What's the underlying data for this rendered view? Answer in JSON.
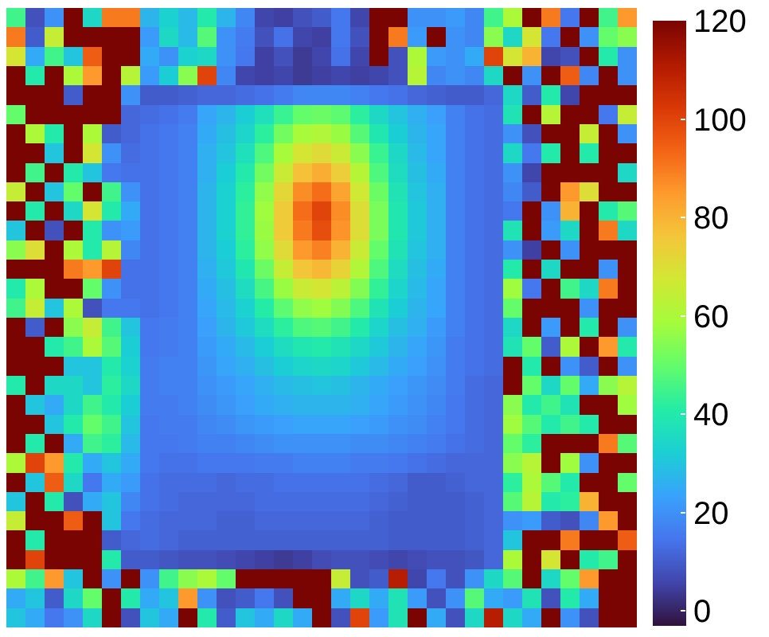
{
  "chart_data": {
    "type": "heatmap",
    "categories": [
      null,
      null,
      null,
      null,
      null,
      null,
      null,
      null,
      null,
      null,
      null,
      null,
      null,
      null,
      null,
      null,
      null,
      null,
      null,
      null,
      null,
      null,
      null,
      null,
      null,
      null,
      null,
      null,
      null,
      null,
      null,
      null,
      null
    ],
    "y_categories": [
      null,
      null,
      null,
      null,
      null,
      null,
      null,
      null,
      null,
      null,
      null,
      null,
      null,
      null,
      null,
      null,
      null,
      null,
      null,
      null,
      null,
      null,
      null,
      null,
      null,
      null,
      null,
      null,
      null,
      null,
      null,
      null
    ],
    "cells": [
      [
        45,
        8,
        20,
        120,
        35,
        90,
        90,
        27,
        33,
        28,
        40,
        27,
        18,
        6,
        5,
        8,
        10,
        15,
        6,
        120,
        120,
        20,
        20,
        22,
        18,
        45,
        60,
        120,
        90,
        15,
        120,
        45,
        85
      ],
      [
        90,
        10,
        65,
        120,
        120,
        120,
        120,
        22,
        35,
        28,
        48,
        20,
        16,
        8,
        14,
        6,
        5,
        15,
        8,
        120,
        90,
        22,
        120,
        20,
        18,
        55,
        35,
        68,
        15,
        120,
        20,
        50,
        55
      ],
      [
        68,
        25,
        45,
        30,
        95,
        120,
        120,
        25,
        20,
        33,
        35,
        20,
        15,
        5,
        8,
        4,
        6,
        14,
        6,
        120,
        8,
        60,
        22,
        20,
        25,
        100,
        68,
        80,
        6,
        8,
        120,
        40,
        20
      ],
      [
        120,
        40,
        120,
        60,
        85,
        120,
        62,
        22,
        32,
        55,
        100,
        18,
        6,
        5,
        6,
        4,
        5,
        6,
        5,
        6,
        8,
        62,
        18,
        20,
        18,
        35,
        120,
        20,
        120,
        95,
        18,
        120,
        20
      ],
      [
        120,
        120,
        120,
        10,
        120,
        120,
        20,
        10,
        10,
        11,
        12,
        12,
        13,
        14,
        16,
        18,
        18,
        18,
        17,
        15,
        14,
        12,
        11,
        10,
        10,
        12,
        35,
        10,
        40,
        6,
        120,
        120,
        120
      ],
      [
        50,
        120,
        120,
        120,
        120,
        120,
        12,
        13,
        14,
        16,
        24,
        27,
        32,
        37,
        44,
        50,
        51,
        49,
        42,
        35,
        30,
        26,
        23,
        17,
        14,
        13,
        38,
        120,
        62,
        120,
        120,
        15,
        65
      ],
      [
        120,
        60,
        40,
        120,
        60,
        10,
        12,
        14,
        15,
        17,
        25,
        29,
        34,
        42,
        52,
        59,
        61,
        57,
        48,
        39,
        32,
        27,
        24,
        17,
        14,
        13,
        20,
        8,
        120,
        120,
        65,
        120,
        20
      ],
      [
        120,
        120,
        30,
        120,
        68,
        20,
        13,
        14,
        15,
        17,
        26,
        30,
        37,
        47,
        59,
        68,
        71,
        66,
        55,
        44,
        35,
        28,
        24,
        17,
        14,
        13,
        35,
        15,
        40,
        120,
        40,
        120,
        120
      ],
      [
        120,
        45,
        120,
        40,
        30,
        15,
        14,
        14,
        15,
        17,
        26,
        32,
        40,
        52,
        66,
        77,
        81,
        74,
        62,
        47,
        36,
        29,
        25,
        17,
        14,
        13,
        20,
        6,
        120,
        120,
        120,
        120,
        35
      ],
      [
        65,
        120,
        30,
        50,
        120,
        45,
        20,
        14,
        15,
        17,
        27,
        33,
        42,
        56,
        72,
        87,
        92,
        83,
        67,
        51,
        38,
        30,
        26,
        17,
        14,
        13,
        18,
        10,
        120,
        85,
        70,
        120,
        120
      ],
      [
        120,
        40,
        120,
        35,
        68,
        40,
        25,
        14,
        15,
        17,
        27,
        33,
        43,
        58,
        75,
        92,
        100,
        87,
        70,
        53,
        39,
        31,
        26,
        17,
        14,
        13,
        15,
        120,
        20,
        80,
        120,
        40,
        48
      ],
      [
        30,
        120,
        8,
        120,
        40,
        20,
        22,
        14,
        15,
        17,
        27,
        33,
        43,
        57,
        75,
        90,
        98,
        86,
        70,
        53,
        39,
        31,
        26,
        17,
        14,
        13,
        38,
        120,
        22,
        35,
        120,
        90,
        35
      ],
      [
        55,
        70,
        120,
        60,
        40,
        62,
        18,
        14,
        15,
        17,
        27,
        32,
        42,
        56,
        71,
        85,
        89,
        80,
        66,
        50,
        38,
        30,
        26,
        17,
        14,
        13,
        20,
        5,
        120,
        20,
        120,
        120,
        120
      ],
      [
        120,
        120,
        120,
        90,
        85,
        100,
        14,
        14,
        15,
        17,
        26,
        31,
        39,
        51,
        65,
        76,
        79,
        73,
        61,
        47,
        36,
        29,
        25,
        17,
        14,
        13,
        40,
        120,
        35,
        120,
        120,
        20,
        120
      ],
      [
        40,
        60,
        120,
        120,
        50,
        20,
        14,
        14,
        15,
        17,
        25,
        29,
        36,
        46,
        57,
        66,
        68,
        63,
        54,
        43,
        34,
        28,
        24,
        17,
        14,
        13,
        58,
        15,
        120,
        45,
        35,
        90,
        120
      ],
      [
        45,
        65,
        30,
        60,
        8,
        15,
        15,
        14,
        15,
        17,
        24,
        28,
        33,
        41,
        49,
        56,
        58,
        54,
        47,
        38,
        32,
        27,
        24,
        17,
        14,
        13,
        50,
        120,
        120,
        120,
        20,
        120,
        120
      ],
      [
        120,
        10,
        120,
        55,
        65,
        45,
        30,
        15,
        16,
        17,
        23,
        27,
        31,
        36,
        42,
        47,
        48,
        45,
        40,
        34,
        29,
        26,
        22,
        17,
        14,
        13,
        35,
        120,
        22,
        120,
        40,
        120,
        20
      ],
      [
        120,
        120,
        40,
        45,
        60,
        48,
        32,
        15,
        16,
        17,
        22,
        25,
        28,
        32,
        36,
        39,
        40,
        38,
        35,
        31,
        27,
        24,
        21,
        16,
        14,
        13,
        38,
        50,
        10,
        60,
        120,
        85,
        40
      ],
      [
        120,
        120,
        120,
        30,
        30,
        40,
        33,
        16,
        17,
        17,
        21,
        24,
        26,
        29,
        32,
        34,
        35,
        34,
        31,
        28,
        25,
        23,
        20,
        16,
        14,
        13,
        120,
        40,
        120,
        20,
        10,
        120,
        20
      ],
      [
        40,
        120,
        35,
        35,
        30,
        42,
        35,
        16,
        17,
        17,
        20,
        22,
        24,
        26,
        28,
        29,
        30,
        29,
        27,
        25,
        23,
        21,
        19,
        16,
        13,
        12,
        120,
        50,
        35,
        50,
        25,
        55,
        62
      ],
      [
        120,
        30,
        25,
        35,
        45,
        40,
        32,
        16,
        16,
        17,
        19,
        21,
        23,
        25,
        26,
        27,
        27,
        27,
        26,
        24,
        22,
        20,
        18,
        15,
        13,
        12,
        55,
        40,
        45,
        38,
        120,
        120,
        58
      ],
      [
        120,
        120,
        30,
        40,
        50,
        45,
        30,
        15,
        16,
        16,
        18,
        19,
        21,
        22,
        23,
        24,
        24,
        24,
        23,
        22,
        20,
        19,
        17,
        15,
        13,
        12,
        58,
        48,
        40,
        45,
        40,
        120,
        120
      ],
      [
        120,
        40,
        120,
        25,
        45,
        42,
        28,
        15,
        15,
        16,
        17,
        17,
        18,
        19,
        20,
        20,
        20,
        20,
        19,
        19,
        18,
        17,
        16,
        14,
        13,
        12,
        50,
        42,
        120,
        120,
        120,
        90,
        48
      ],
      [
        60,
        100,
        85,
        40,
        25,
        30,
        25,
        15,
        14,
        14,
        15,
        15,
        15,
        16,
        16,
        17,
        17,
        17,
        16,
        16,
        15,
        14,
        13,
        12,
        12,
        12,
        55,
        62,
        120,
        58,
        20,
        120,
        120
      ],
      [
        120,
        30,
        95,
        35,
        15,
        25,
        22,
        14,
        13,
        13,
        13,
        12,
        13,
        13,
        14,
        14,
        14,
        14,
        14,
        13,
        12,
        10,
        10,
        11,
        12,
        12,
        42,
        60,
        48,
        40,
        120,
        120,
        50
      ],
      [
        30,
        120,
        40,
        8,
        25,
        30,
        18,
        14,
        13,
        12,
        12,
        12,
        12,
        13,
        13,
        13,
        13,
        13,
        13,
        12,
        11,
        10,
        10,
        10,
        11,
        12,
        48,
        62,
        40,
        42,
        80,
        120,
        120
      ],
      [
        65,
        120,
        120,
        95,
        120,
        30,
        15,
        13,
        12,
        12,
        12,
        11,
        11,
        12,
        12,
        12,
        12,
        12,
        12,
        11,
        10,
        10,
        10,
        10,
        11,
        12,
        20,
        22,
        10,
        8,
        18,
        85,
        120
      ],
      [
        120,
        40,
        120,
        120,
        120,
        10,
        12,
        13,
        12,
        11,
        11,
        11,
        11,
        11,
        11,
        11,
        11,
        11,
        11,
        11,
        10,
        10,
        10,
        10,
        11,
        12,
        30,
        120,
        120,
        90,
        120,
        120,
        95
      ],
      [
        120,
        100,
        120,
        120,
        120,
        40,
        10,
        10,
        9,
        8,
        8,
        7,
        6,
        5,
        4,
        5,
        7,
        8,
        8,
        7,
        6,
        7,
        8,
        8,
        9,
        12,
        60,
        120,
        68,
        120,
        40,
        45,
        120
      ],
      [
        60,
        45,
        85,
        30,
        120,
        20,
        120,
        20,
        45,
        55,
        60,
        50,
        120,
        120,
        120,
        120,
        120,
        65,
        8,
        10,
        110,
        6,
        15,
        8,
        20,
        35,
        48,
        120,
        35,
        50,
        85,
        120,
        120
      ],
      [
        25,
        30,
        10,
        35,
        50,
        120,
        40,
        25,
        30,
        85,
        20,
        8,
        10,
        15,
        8,
        120,
        120,
        25,
        35,
        25,
        38,
        22,
        8,
        20,
        48,
        25,
        22,
        38,
        8,
        40,
        25,
        120,
        120
      ],
      [
        30,
        25,
        15,
        20,
        35,
        120,
        8,
        30,
        25,
        120,
        40,
        10,
        30,
        25,
        35,
        25,
        120,
        8,
        100,
        22,
        38,
        120,
        25,
        8,
        35,
        110,
        35,
        25,
        120,
        20,
        8,
        120,
        120
      ]
    ],
    "clim": [
      -3,
      120
    ],
    "cticks": [
      0,
      20,
      40,
      60,
      80,
      100,
      120
    ]
  }
}
